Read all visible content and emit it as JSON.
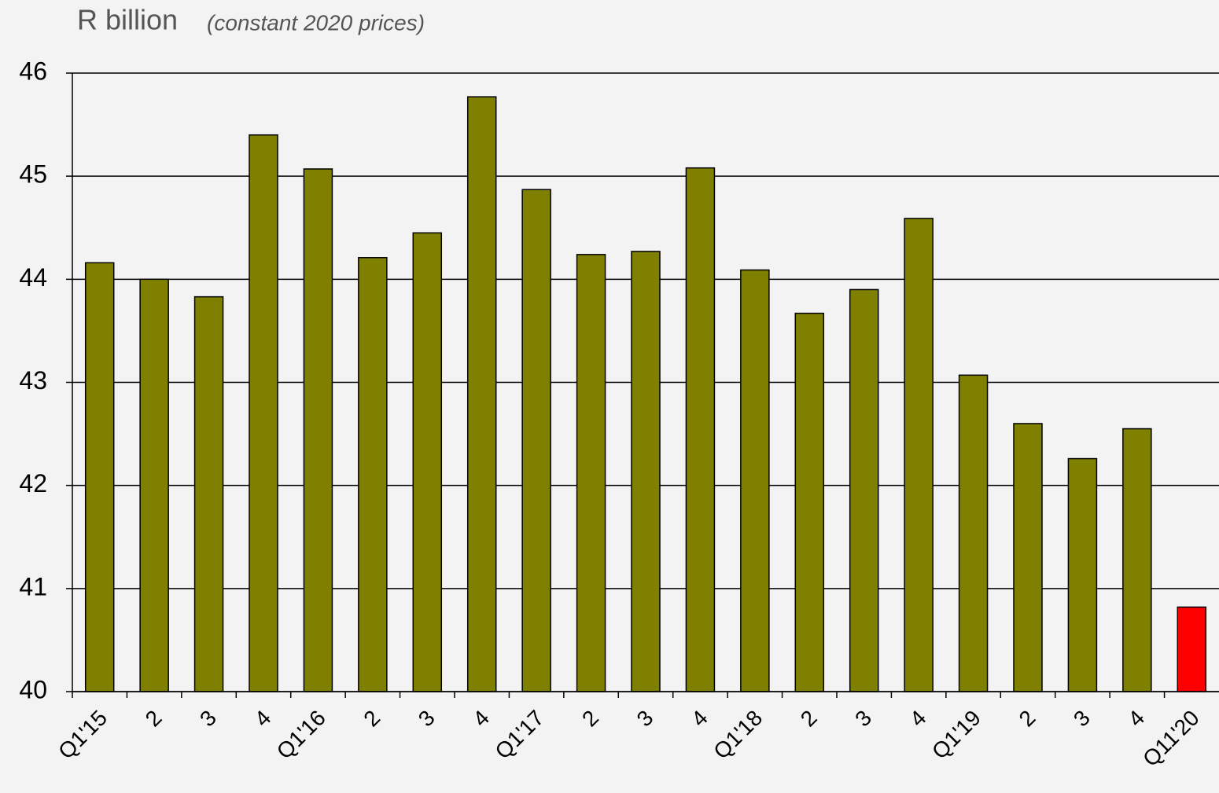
{
  "chart_data": {
    "type": "bar",
    "title": "R billion",
    "subtitle": "(constant 2020 prices)",
    "categories": [
      "Q1'15",
      "2",
      "3",
      "4",
      "Q1'16",
      "2",
      "3",
      "4",
      "Q1'17",
      "2",
      "3",
      "4",
      "Q1'18",
      "2",
      "3",
      "4",
      "Q1'19",
      "2",
      "3",
      "4",
      "Q11'20"
    ],
    "values": [
      44.16,
      44.0,
      43.83,
      45.4,
      45.07,
      44.21,
      44.45,
      45.77,
      44.87,
      44.24,
      44.27,
      45.08,
      44.09,
      43.67,
      43.9,
      44.59,
      43.07,
      42.6,
      42.26,
      42.55,
      40.82
    ],
    "colors": [
      "#808000",
      "#808000",
      "#808000",
      "#808000",
      "#808000",
      "#808000",
      "#808000",
      "#808000",
      "#808000",
      "#808000",
      "#808000",
      "#808000",
      "#808000",
      "#808000",
      "#808000",
      "#808000",
      "#808000",
      "#808000",
      "#808000",
      "#808000",
      "#ff0000"
    ],
    "ylim": [
      40,
      46
    ],
    "yticks": [
      40,
      41,
      42,
      43,
      44,
      45,
      46
    ],
    "grid": true
  }
}
